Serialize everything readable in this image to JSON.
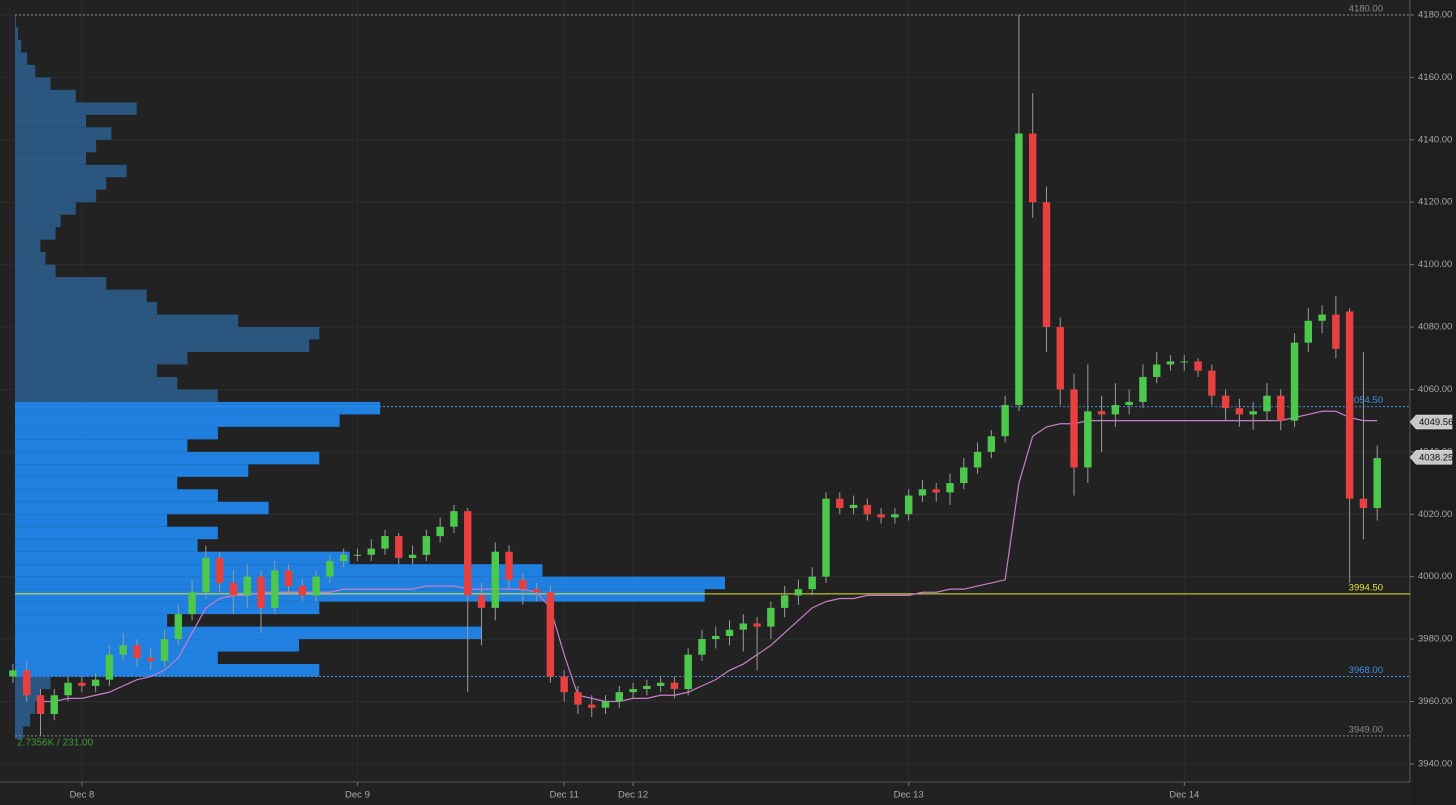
{
  "chart_data": {
    "type": "candlestick",
    "ylim": [
      3934.2,
      4184.8
    ],
    "yticks": [
      {
        "value": 3940,
        "label": "3940.00"
      },
      {
        "value": 3960,
        "label": "3960.00"
      },
      {
        "value": 3980,
        "label": "3980.00"
      },
      {
        "value": 4000,
        "label": "4000.00"
      },
      {
        "value": 4020,
        "label": "4020.00"
      },
      {
        "value": 4040,
        "label": "4040.00"
      },
      {
        "value": 4060,
        "label": "4060.00"
      },
      {
        "value": 4080,
        "label": "4080.00"
      },
      {
        "value": 4100,
        "label": "4100.00"
      },
      {
        "value": 4120,
        "label": "4120.00"
      },
      {
        "value": 4140,
        "label": "4140.00"
      },
      {
        "value": 4160,
        "label": "4160.00"
      },
      {
        "value": 4180,
        "label": "4180.00"
      }
    ],
    "xlim": [
      -0.94,
      101.38
    ],
    "xticks": [
      {
        "value": 5,
        "label": "Dec 8"
      },
      {
        "value": 25,
        "label": "Dec 9"
      },
      {
        "value": 40,
        "label": "Dec 11"
      },
      {
        "value": 45,
        "label": "Dec 12"
      },
      {
        "value": 65,
        "label": "Dec 13"
      },
      {
        "value": 85,
        "label": "Dec 14"
      }
    ],
    "grid": true,
    "up_color": "#4cc84c",
    "down_color": "#e8403f",
    "wick_color": "#9a9a9a",
    "open": [
      3968,
      3970,
      3962,
      3956,
      3962,
      3966,
      3965,
      3967,
      3975,
      3978,
      3974,
      3973,
      3980,
      3988,
      3995,
      4006,
      3998,
      3994,
      4000,
      3990,
      4002,
      3997,
      3994,
      4000,
      4005,
      4007,
      4007,
      4009,
      4013,
      4006,
      4007,
      4013,
      4016,
      4021,
      3994,
      3990,
      4008,
      3999,
      3996,
      3995,
      3968,
      3963,
      3959,
      3958,
      3960,
      3963,
      3964,
      3965,
      3966,
      3964,
      3975,
      3980,
      3981,
      3983,
      3985,
      3984,
      3990,
      3994,
      3996,
      4000,
      4025,
      4022,
      4023,
      4020,
      4019,
      4020,
      4026,
      4028,
      4027,
      4030,
      4035,
      4040,
      4045,
      4055,
      4142,
      4120,
      4080,
      4060,
      4035,
      4053,
      4052,
      4055,
      4056,
      4064,
      4068,
      4069,
      4069,
      4066,
      4058,
      4054,
      4052,
      4053,
      4058,
      4050,
      4075,
      4082,
      4084,
      4085,
      4025,
      4022
    ],
    "high": [
      3972,
      3973,
      3964,
      3964,
      3968,
      3968,
      3969,
      3978,
      3982,
      3980,
      3977,
      3983,
      3991,
      3999,
      4010,
      4008,
      4002,
      4004,
      4002,
      4005,
      4004,
      3999,
      4002,
      4007,
      4009,
      4009,
      4012,
      4015,
      4014,
      4010,
      4015,
      4019,
      4023,
      4022,
      3998,
      4011,
      4010,
      4001,
      3998,
      3997,
      3970,
      3965,
      3962,
      3962,
      3965,
      3966,
      3967,
      3968,
      3968,
      3977,
      3983,
      3984,
      3986,
      3988,
      3987,
      3992,
      3997,
      3999,
      4003,
      4027,
      4027,
      4026,
      4025,
      4022,
      4022,
      4028,
      4031,
      4030,
      4033,
      4038,
      4043,
      4047,
      4058,
      4180,
      4155,
      4125,
      4083,
      4065,
      4068,
      4058,
      4062,
      4060,
      4068,
      4072,
      4071,
      4071,
      4070,
      4068,
      4060,
      4057,
      4056,
      4062,
      4060,
      4078,
      4086,
      4087,
      4090,
      4086,
      4072,
      4042
    ],
    "low": [
      3966,
      3960,
      3949,
      3954,
      3960,
      3963,
      3963,
      3965,
      3973,
      3971,
      3970,
      3971,
      3978,
      3986,
      3993,
      3995,
      3988,
      3990,
      3982,
      3988,
      3994,
      3992,
      3992,
      3998,
      4003,
      4005,
      4005,
      4007,
      4004,
      4004,
      4005,
      4011,
      4014,
      3963,
      3978,
      3986,
      3996,
      3991,
      3992,
      3966,
      3960,
      3956,
      3955,
      3956,
      3958,
      3961,
      3962,
      3963,
      3961,
      3962,
      3973,
      3977,
      3978,
      3976,
      3970,
      3980,
      3987,
      3991,
      3994,
      3998,
      4020,
      4020,
      4018,
      4017,
      4017,
      4018,
      4024,
      4024,
      4023,
      4028,
      4033,
      4038,
      4043,
      4053,
      4115,
      4072,
      4055,
      4026,
      4030,
      4040,
      4048,
      4052,
      4054,
      4062,
      4066,
      4066,
      4064,
      4055,
      4050,
      4048,
      4047,
      4050,
      4047,
      4048,
      4072,
      4078,
      4070,
      3998,
      4012,
      4018
    ],
    "close": [
      3970,
      3962,
      3956,
      3962,
      3966,
      3965,
      3967,
      3975,
      3978,
      3974,
      3973,
      3980,
      3988,
      3995,
      4006,
      3998,
      3994,
      4000,
      3990,
      4002,
      3997,
      3994,
      4000,
      4005,
      4007,
      4007,
      4009,
      4013,
      4006,
      4007,
      4013,
      4016,
      4021,
      3994,
      3990,
      4008,
      3999,
      3996,
      3995,
      3968,
      3963,
      3959,
      3958,
      3960,
      3963,
      3964,
      3965,
      3966,
      3964,
      3975,
      3980,
      3981,
      3983,
      3985,
      3984,
      3990,
      3994,
      3996,
      4000,
      4025,
      4022,
      4023,
      4020,
      4019,
      4020,
      4026,
      4028,
      4027,
      4030,
      4035,
      4040,
      4045,
      4055,
      4142,
      4120,
      4080,
      4060,
      4035,
      4053,
      4052,
      4055,
      4056,
      4064,
      4068,
      4069,
      4069,
      4066,
      4058,
      4054,
      4052,
      4053,
      4058,
      4050,
      4075,
      4082,
      4084,
      4073,
      4025,
      4022,
      4038
    ],
    "vwap": {
      "color": "#c77dc9",
      "values": [
        null,
        null,
        3960,
        3960,
        3961,
        3961,
        3962,
        3963,
        3965,
        3967,
        3968,
        3970,
        3974,
        3982,
        3990,
        3993,
        3994,
        3994,
        3995,
        3995,
        3995,
        3995,
        3995,
        3995,
        3996,
        3996,
        3996,
        3996,
        3996,
        3996,
        3997,
        3997,
        3997,
        3996,
        3996,
        3996,
        3996,
        3996,
        3995,
        3990,
        3975,
        3962,
        3961,
        3960,
        3960,
        3961,
        3961,
        3962,
        3962,
        3963,
        3965,
        3967,
        3970,
        3972,
        3975,
        3978,
        3982,
        3986,
        3990,
        3992,
        3993,
        3993,
        3994,
        3994,
        3994,
        3994,
        3995,
        3995,
        3996,
        3996,
        3997,
        3998,
        3999,
        4030,
        4045,
        4048,
        4049,
        4049,
        4050,
        4050,
        4050,
        4050,
        4050,
        4050,
        4050,
        4050,
        4050,
        4050,
        4050,
        4050,
        4050,
        4050,
        4050,
        4051,
        4052,
        4053,
        4053,
        4051,
        4050,
        4050
      ]
    },
    "profile": {
      "color_inside": "#1f80e0",
      "color_outside": "#2b5f8f",
      "bins": [
        3948,
        3952,
        3956,
        3960,
        3964,
        3968,
        3972,
        3976,
        3980,
        3984,
        3988,
        3992,
        3996,
        4000,
        4004,
        4008,
        4012,
        4016,
        4020,
        4024,
        4028,
        4032,
        4036,
        4040,
        4044,
        4048,
        4052,
        4056,
        4060,
        4064,
        4068,
        4072,
        4076,
        4080,
        4084,
        4088,
        4092,
        4096,
        4100,
        4104,
        4108,
        4112,
        4116,
        4120,
        4124,
        4128,
        4132,
        4136,
        4140,
        4144,
        4148,
        4152,
        4156,
        4160,
        4164,
        4168,
        4172,
        4176,
        4180
      ],
      "values": [
        8,
        15,
        20,
        25,
        35,
        300,
        200,
        280,
        460,
        150,
        300,
        680,
        700,
        520,
        330,
        180,
        200,
        150,
        250,
        200,
        160,
        230,
        300,
        170,
        200,
        320,
        360,
        200,
        160,
        140,
        170,
        290,
        300,
        220,
        140,
        130,
        90,
        40,
        30,
        25,
        40,
        45,
        60,
        80,
        90,
        110,
        70,
        80,
        95,
        70,
        120,
        60,
        35,
        20,
        12,
        6,
        3,
        1
      ]
    },
    "value_area": {
      "color": "#3d8fe8",
      "high": {
        "value": 4054.5,
        "label": "4054.50"
      },
      "low": {
        "value": 3968,
        "label": "3968.00"
      }
    },
    "poc": {
      "value": 3994.5,
      "label": "3994.50",
      "color": "#e6e62e"
    },
    "range_lines": {
      "color": "#8a8a8a",
      "levels": [
        {
          "value": 4180,
          "label": "4180.00"
        },
        {
          "value": 3949,
          "label": "3949.00"
        }
      ]
    },
    "tags": [
      {
        "value": 4049.56,
        "label": "4049.56"
      },
      {
        "value": 4038.25,
        "label": "4038.25"
      }
    ],
    "footer_text": "2.7356K / 231.00"
  }
}
